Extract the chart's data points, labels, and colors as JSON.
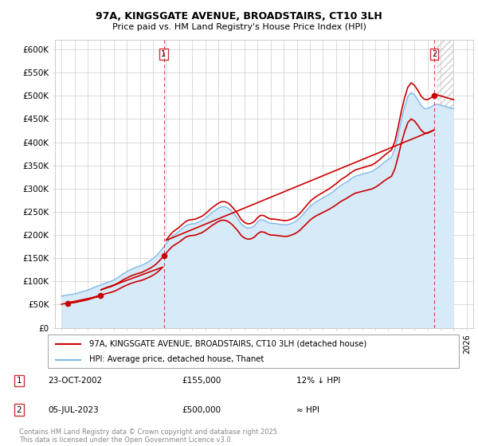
{
  "title": "97A, KINGSGATE AVENUE, BROADSTAIRS, CT10 3LH",
  "subtitle": "Price paid vs. HM Land Registry's House Price Index (HPI)",
  "ytick_labels": [
    "£0",
    "£50K",
    "£100K",
    "£150K",
    "£200K",
    "£250K",
    "£300K",
    "£350K",
    "£400K",
    "£450K",
    "£500K",
    "£550K",
    "£600K"
  ],
  "yticks": [
    0,
    50000,
    100000,
    150000,
    200000,
    250000,
    300000,
    350000,
    400000,
    450000,
    500000,
    550000,
    600000
  ],
  "hpi_color": "#7bb8e8",
  "hpi_fill_color": "#d6eaf8",
  "price_color": "#cc0000",
  "annotation_line_color": "#cc0000",
  "grid_color": "#cccccc",
  "legend_label_price": "97A, KINGSGATE AVENUE, BROADSTAIRS, CT10 3LH (detached house)",
  "legend_label_hpi": "HPI: Average price, detached house, Thanet",
  "annotation1": {
    "x": 2002.82,
    "label": "1",
    "date": "23-OCT-2002",
    "price": "£155,000",
    "note": "12% ↓ HPI"
  },
  "annotation2": {
    "x": 2023.51,
    "label": "2",
    "date": "05-JUL-2023",
    "price": "£500,000",
    "note": "≈ HPI"
  },
  "footer": "Contains HM Land Registry data © Crown copyright and database right 2025.\nThis data is licensed under the Open Government Licence v3.0.",
  "sales": [
    {
      "year": 1995.5,
      "price": 53000
    },
    {
      "year": 1998.0,
      "price": 70000
    },
    {
      "year": 2002.82,
      "price": 155000
    },
    {
      "year": 2023.51,
      "price": 500000
    }
  ],
  "hpi_x": [
    1995.0,
    1995.25,
    1995.5,
    1995.75,
    1996.0,
    1996.25,
    1996.5,
    1996.75,
    1997.0,
    1997.25,
    1997.5,
    1997.75,
    1998.0,
    1998.25,
    1998.5,
    1998.75,
    1999.0,
    1999.25,
    1999.5,
    1999.75,
    2000.0,
    2000.25,
    2000.5,
    2000.75,
    2001.0,
    2001.25,
    2001.5,
    2001.75,
    2002.0,
    2002.25,
    2002.5,
    2002.75,
    2003.0,
    2003.25,
    2003.5,
    2003.75,
    2004.0,
    2004.25,
    2004.5,
    2004.75,
    2005.0,
    2005.25,
    2005.5,
    2005.75,
    2006.0,
    2006.25,
    2006.5,
    2006.75,
    2007.0,
    2007.25,
    2007.5,
    2007.75,
    2008.0,
    2008.25,
    2008.5,
    2008.75,
    2009.0,
    2009.25,
    2009.5,
    2009.75,
    2010.0,
    2010.25,
    2010.5,
    2010.75,
    2011.0,
    2011.25,
    2011.5,
    2011.75,
    2012.0,
    2012.25,
    2012.5,
    2012.75,
    2013.0,
    2013.25,
    2013.5,
    2013.75,
    2014.0,
    2014.25,
    2014.5,
    2014.75,
    2015.0,
    2015.25,
    2015.5,
    2015.75,
    2016.0,
    2016.25,
    2016.5,
    2016.75,
    2017.0,
    2017.25,
    2017.5,
    2017.75,
    2018.0,
    2018.25,
    2018.5,
    2018.75,
    2019.0,
    2019.25,
    2019.5,
    2019.75,
    2020.0,
    2020.25,
    2020.5,
    2020.75,
    2021.0,
    2021.25,
    2021.5,
    2021.75,
    2022.0,
    2022.25,
    2022.5,
    2022.75,
    2023.0,
    2023.25,
    2023.5,
    2023.75,
    2024.0,
    2024.25,
    2024.5,
    2024.75,
    2025.0
  ],
  "hpi_y": [
    68000,
    70000,
    71000,
    72000,
    73000,
    75000,
    77000,
    79000,
    81000,
    84000,
    87000,
    90000,
    92000,
    95000,
    98000,
    100000,
    103000,
    107000,
    112000,
    117000,
    121000,
    125000,
    128000,
    131000,
    133000,
    136000,
    140000,
    144000,
    149000,
    155000,
    163000,
    172000,
    181000,
    190000,
    198000,
    203000,
    208000,
    214000,
    220000,
    223000,
    224000,
    225000,
    228000,
    231000,
    236000,
    242000,
    248000,
    253000,
    258000,
    261000,
    261000,
    258000,
    252000,
    244000,
    235000,
    224000,
    218000,
    215000,
    216000,
    220000,
    228000,
    233000,
    232000,
    228000,
    225000,
    225000,
    224000,
    223000,
    222000,
    222000,
    224000,
    227000,
    231000,
    237000,
    245000,
    253000,
    261000,
    267000,
    272000,
    276000,
    280000,
    284000,
    288000,
    293000,
    298000,
    304000,
    309000,
    313000,
    318000,
    323000,
    327000,
    329000,
    331000,
    333000,
    335000,
    337000,
    341000,
    346000,
    352000,
    358000,
    363000,
    368000,
    385000,
    415000,
    448000,
    476000,
    498000,
    507000,
    502000,
    492000,
    480000,
    473000,
    472000,
    476000,
    480000,
    482000,
    480000,
    478000,
    476000,
    474000,
    472000
  ]
}
